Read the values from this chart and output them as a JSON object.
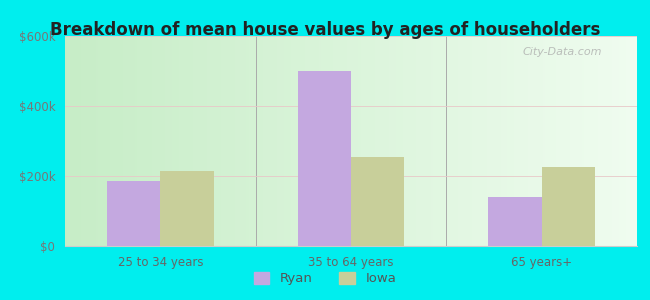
{
  "title": "Breakdown of mean house values by ages of householders",
  "categories": [
    "25 to 34 years",
    "35 to 64 years",
    "65 years+"
  ],
  "ryan_values": [
    185000,
    500000,
    140000
  ],
  "iowa_values": [
    215000,
    255000,
    225000
  ],
  "bar_color_ryan": "#c4a8e0",
  "bar_color_iowa": "#c8cf9a",
  "ylim": [
    0,
    600000
  ],
  "yticks": [
    0,
    200000,
    400000,
    600000
  ],
  "ytick_labels": [
    "$0",
    "$200k",
    "$400k",
    "$600k"
  ],
  "legend_labels": [
    "Ryan",
    "Iowa"
  ],
  "outer_background": "#00eeee",
  "watermark": "City-Data.com",
  "bar_width": 0.28
}
